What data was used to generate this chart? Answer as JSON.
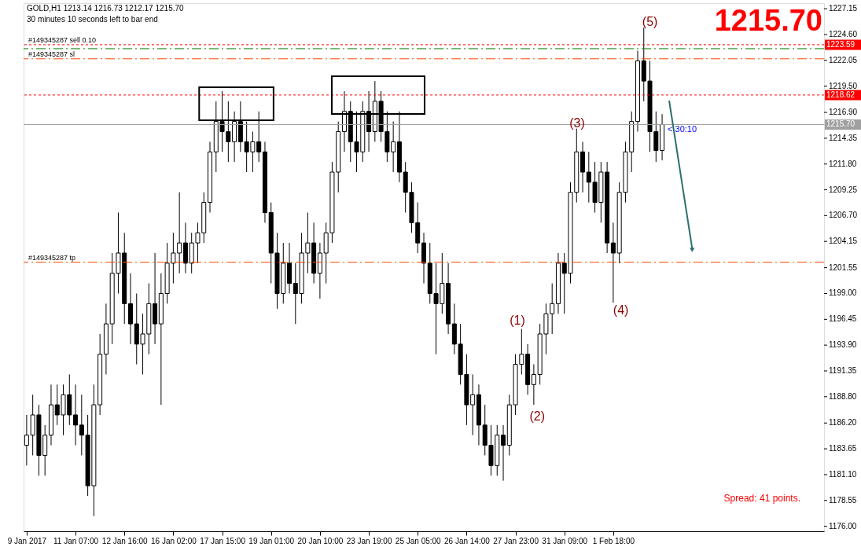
{
  "chart_data": {
    "type": "candlestick",
    "title": "GOLD,H1  1213.14 1216.73 1212.17 1215.70",
    "subtitle": "30 minutes 10 seconds left to bar end",
    "categories": [
      "9 Jan 2017",
      null,
      null,
      null,
      null,
      null,
      null,
      null,
      "11 Jan 07:00",
      null,
      null,
      null,
      null,
      null,
      null,
      null,
      "12 Jan 16:00",
      null,
      null,
      null,
      null,
      null,
      null,
      null,
      "16 Jan 02:00",
      null,
      null,
      null,
      null,
      null,
      null,
      null,
      "17 Jan 15:00",
      null,
      null,
      null,
      null,
      null,
      null,
      null,
      "19 Jan 01:00",
      null,
      null,
      null,
      null,
      null,
      null,
      null,
      "20 Jan 10:00",
      null,
      null,
      null,
      null,
      null,
      null,
      null,
      "23 Jan 19:00",
      null,
      null,
      null,
      null,
      null,
      null,
      null,
      "25 Jan 05:00",
      null,
      null,
      null,
      null,
      null,
      null,
      null,
      "26 Jan 14:00",
      null,
      null,
      null,
      null,
      null,
      null,
      null,
      "27 Jan 23:00",
      null,
      null,
      null,
      null,
      null,
      null,
      null,
      "31 Jan 09:00",
      null,
      null,
      null,
      null,
      null,
      null,
      null,
      "1 Feb 18:00",
      null,
      null,
      null,
      null,
      null,
      null,
      null,
      null,
      null,
      null,
      null,
      null,
      null,
      null,
      null,
      null,
      null,
      null,
      null,
      null,
      null,
      null,
      null,
      null,
      null,
      null,
      null,
      null,
      null,
      null,
      null,
      null,
      null,
      null
    ],
    "ohlc": [
      [
        1184,
        1187,
        1182,
        1185
      ],
      [
        1185,
        1189,
        1183,
        1187
      ],
      [
        1187,
        1188,
        1181,
        1183
      ],
      [
        1183,
        1186,
        1181,
        1185
      ],
      [
        1185,
        1190,
        1184,
        1188
      ],
      [
        1188,
        1190,
        1186,
        1187
      ],
      [
        1187,
        1190,
        1185,
        1189
      ],
      [
        1189,
        1191,
        1186,
        1187
      ],
      [
        1187,
        1190,
        1184,
        1186
      ],
      [
        1186,
        1189,
        1183,
        1185
      ],
      [
        1185,
        1187,
        1179,
        1180
      ],
      [
        1180,
        1190,
        1177,
        1188
      ],
      [
        1188,
        1195,
        1187,
        1193
      ],
      [
        1193,
        1198,
        1191,
        1196
      ],
      [
        1196,
        1203,
        1194,
        1201
      ],
      [
        1201,
        1207,
        1199,
        1203
      ],
      [
        1203,
        1205,
        1196,
        1198
      ],
      [
        1198,
        1201,
        1194,
        1196
      ],
      [
        1196,
        1199,
        1192,
        1194
      ],
      [
        1194,
        1197,
        1191,
        1195
      ],
      [
        1195,
        1200,
        1193,
        1198
      ],
      [
        1198,
        1203,
        1194,
        1196
      ],
      [
        1196,
        1201,
        1188,
        1199
      ],
      [
        1199,
        1204,
        1198,
        1202
      ],
      [
        1202,
        1205,
        1200,
        1203
      ],
      [
        1203,
        1209,
        1201,
        1204
      ],
      [
        1204,
        1206,
        1201,
        1202
      ],
      [
        1202,
        1205,
        1201,
        1204
      ],
      [
        1204,
        1206,
        1202,
        1205
      ],
      [
        1205,
        1209,
        1204,
        1208
      ],
      [
        1208,
        1214,
        1207,
        1213
      ],
      [
        1213,
        1218,
        1211,
        1216
      ],
      [
        1216,
        1219,
        1213,
        1215
      ],
      [
        1215,
        1218,
        1212,
        1214
      ],
      [
        1214,
        1217,
        1212,
        1216
      ],
      [
        1216,
        1218,
        1213,
        1214
      ],
      [
        1214,
        1216,
        1211,
        1213
      ],
      [
        1213,
        1215,
        1211,
        1214
      ],
      [
        1214,
        1217,
        1212,
        1213
      ],
      [
        1213,
        1214,
        1206,
        1207
      ],
      [
        1207,
        1208,
        1200,
        1203
      ],
      [
        1203,
        1205,
        1197.5,
        1199
      ],
      [
        1199,
        1204,
        1198,
        1202
      ],
      [
        1202,
        1204,
        1199,
        1200
      ],
      [
        1200,
        1202,
        1196,
        1199
      ],
      [
        1199,
        1205,
        1198,
        1203
      ],
      [
        1203,
        1207,
        1201,
        1204
      ],
      [
        1204,
        1206,
        1200,
        1201
      ],
      [
        1201,
        1204,
        1198.5,
        1203
      ],
      [
        1203,
        1206,
        1200,
        1205
      ],
      [
        1205,
        1212,
        1204,
        1211
      ],
      [
        1211,
        1216,
        1209,
        1215
      ],
      [
        1215,
        1219,
        1213,
        1217
      ],
      [
        1217,
        1218,
        1212,
        1214
      ],
      [
        1214,
        1217,
        1211,
        1213
      ],
      [
        1213,
        1218,
        1212,
        1217
      ],
      [
        1217,
        1219,
        1213,
        1215
      ],
      [
        1215,
        1220,
        1214,
        1218
      ],
      [
        1218,
        1219,
        1214,
        1215
      ],
      [
        1215,
        1217,
        1212,
        1213
      ],
      [
        1213,
        1216,
        1211,
        1214
      ],
      [
        1214,
        1217,
        1210,
        1211
      ],
      [
        1211,
        1212,
        1207,
        1209
      ],
      [
        1209,
        1210,
        1205,
        1206
      ],
      [
        1206,
        1208,
        1203,
        1204
      ],
      [
        1204,
        1205,
        1200,
        1202
      ],
      [
        1202,
        1204,
        1198,
        1199
      ],
      [
        1199,
        1202,
        1193,
        1198
      ],
      [
        1198,
        1203,
        1197,
        1200
      ],
      [
        1200,
        1202,
        1195,
        1196
      ],
      [
        1196,
        1198,
        1193,
        1194
      ],
      [
        1194,
        1196,
        1190,
        1191
      ],
      [
        1191,
        1193,
        1186,
        1188
      ],
      [
        1188,
        1191,
        1185,
        1189
      ],
      [
        1189,
        1190,
        1184,
        1186
      ],
      [
        1186,
        1188,
        1183,
        1184
      ],
      [
        1184,
        1186,
        1181,
        1182
      ],
      [
        1182,
        1186,
        1181,
        1185
      ],
      [
        1185,
        1186,
        1180.5,
        1184
      ],
      [
        1184,
        1189,
        1183,
        1188
      ],
      [
        1188,
        1193,
        1187,
        1192
      ],
      [
        1192,
        1195.5,
        1191,
        1193
      ],
      [
        1193,
        1194,
        1189,
        1190
      ],
      [
        1190,
        1192,
        1188,
        1191
      ],
      [
        1191,
        1196,
        1190,
        1195
      ],
      [
        1195,
        1198,
        1193,
        1197
      ],
      [
        1197,
        1200,
        1195,
        1198
      ],
      [
        1198,
        1203,
        1197,
        1202
      ],
      [
        1202,
        1203,
        1197,
        1201
      ],
      [
        1201,
        1210,
        1200,
        1209
      ],
      [
        1209,
        1215.3,
        1208,
        1213
      ],
      [
        1213,
        1214,
        1209,
        1211
      ],
      [
        1211,
        1213,
        1208,
        1210
      ],
      [
        1210,
        1212,
        1207,
        1208
      ],
      [
        1208,
        1212,
        1206,
        1211
      ],
      [
        1211,
        1212,
        1203,
        1204
      ],
      [
        1204,
        1206,
        1198.1,
        1203
      ],
      [
        1203,
        1210,
        1202,
        1209
      ],
      [
        1209,
        1214,
        1208,
        1213
      ],
      [
        1213,
        1217,
        1211,
        1216
      ],
      [
        1216,
        1223,
        1215,
        1222
      ],
      [
        1222,
        1225.3,
        1218,
        1220
      ],
      [
        1220,
        1222,
        1213,
        1215
      ],
      [
        1215,
        1217,
        1212,
        1213.14
      ],
      [
        1213.14,
        1216.73,
        1212.17,
        1215.7
      ],
      null,
      null,
      null,
      null,
      null,
      null,
      null,
      null,
      null,
      null,
      null,
      null,
      null,
      null,
      null,
      null,
      null,
      null,
      null,
      null,
      null,
      null,
      null,
      null,
      null,
      null
    ],
    "ylim": [
      1175.5,
      1227.7
    ],
    "yticks": [
      {
        "value": 1176,
        "label": "1176.00"
      },
      1178.55,
      {
        "value": 1181.1,
        "label": "1181.10"
      },
      1183.65,
      {
        "value": 1186.2,
        "label": "1186.20"
      },
      {
        "value": 1188.8,
        "label": "1188.80"
      },
      1191.35,
      {
        "value": 1193.9,
        "label": "1193.90"
      },
      1196.45,
      {
        "value": 1199,
        "label": "1199.00"
      },
      1201.55,
      1204.15,
      {
        "value": 1206.7,
        "label": "1206.70"
      },
      1209.25,
      {
        "value": 1211.8,
        "label": "1211.80"
      },
      1214.35,
      {
        "value": 1216.9,
        "label": "1216.90"
      },
      {
        "value": 1219.5,
        "label": "1219.50"
      },
      1222.05,
      {
        "value": 1224.6,
        "label": "1224.60"
      },
      1227.15
    ],
    "ref_lines": [
      {
        "axis": "y",
        "value": 1223.59,
        "label": "1223.59",
        "color": "#ff0000",
        "line_style": "dotted"
      },
      {
        "axis": "y",
        "value": 1223.2,
        "color": "#008000",
        "line_style": "dashed"
      },
      {
        "axis": "y",
        "value": 1222.2,
        "color": "#ff4500",
        "line_style": "dashed"
      },
      {
        "axis": "y",
        "value": 1218.62,
        "label": "1218.62",
        "color": "#ff0000",
        "line_style": "dotted"
      },
      {
        "axis": "y",
        "value": 1215.7,
        "label": "1215.70",
        "color": "#a0a0a0",
        "line_style": "solid"
      },
      {
        "axis": "y",
        "value": 1202.1,
        "color": "#ff4500",
        "line_style": "dashed"
      }
    ],
    "annotations": [
      "1215.70",
      "Spread: 41 points.",
      "(1)",
      "(2)",
      "(3)",
      "(4)",
      "(5)",
      "< 30:10",
      {
        "text": "#149345287 sell 0.10",
        "y": 1223.59
      },
      {
        "text": "#149345287 sl",
        "y": 1222.2
      },
      {
        "text": "#149345287 tp",
        "y": 1202.1
      }
    ],
    "grid": false
  }
}
